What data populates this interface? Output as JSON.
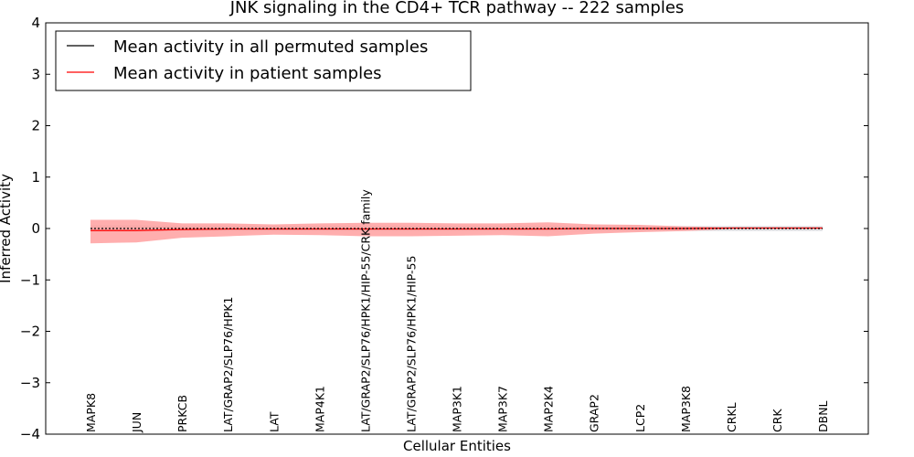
{
  "chart_data": {
    "type": "line",
    "title": "JNK signaling in the CD4+ TCR pathway -- 222 samples",
    "xlabel": "Cellular Entities",
    "ylabel": "Inferred Activity",
    "ylim": [
      -4,
      4
    ],
    "yticks": [
      4,
      3,
      2,
      1,
      0,
      -1,
      -2,
      -3,
      -4
    ],
    "ytick_labels": [
      "4",
      "3",
      "2",
      "1",
      "0",
      "−1",
      "−2",
      "−3",
      "−4"
    ],
    "categories": [
      "MAPK8",
      "JUN",
      "PRKCB",
      "LAT/GRAP2/SLP76/HPK1",
      "LAT",
      "MAP4K1",
      "LAT/GRAP2/SLP76/HPK1/HIP-55/CRK family",
      "LAT/GRAP2/SLP76/HPK1/HIP-55",
      "MAP3K1",
      "MAP3K7",
      "MAP2K4",
      "GRAP2",
      "LCP2",
      "MAP3K8",
      "CRKL",
      "CRK",
      "DBNL"
    ],
    "legend_position": "top-left",
    "colors": {
      "permuted": "#000000",
      "patient": "#ff0000",
      "patient_band": "#ff9a9a",
      "permuted_band": "#c9c9cf"
    },
    "series": [
      {
        "name": "Mean activity in all permuted samples",
        "values": [
          0.0,
          0.0,
          0.0,
          0.0,
          0.0,
          0.0,
          0.0,
          0.0,
          0.0,
          0.0,
          0.0,
          0.0,
          0.0,
          0.0,
          0.0,
          0.0,
          0.0
        ],
        "band_low": [
          -0.06,
          -0.06,
          -0.05,
          -0.05,
          -0.05,
          -0.05,
          -0.05,
          -0.05,
          -0.05,
          -0.05,
          -0.05,
          -0.05,
          -0.05,
          -0.05,
          -0.05,
          -0.05,
          -0.05
        ],
        "band_high": [
          0.06,
          0.06,
          0.05,
          0.05,
          0.05,
          0.05,
          0.05,
          0.05,
          0.05,
          0.05,
          0.05,
          0.05,
          0.05,
          0.05,
          0.05,
          0.05,
          0.05
        ]
      },
      {
        "name": "Mean activity in patient samples",
        "values": [
          -0.04,
          -0.04,
          -0.02,
          -0.01,
          -0.01,
          -0.01,
          -0.01,
          -0.01,
          -0.01,
          -0.01,
          -0.01,
          0.0,
          0.0,
          0.0,
          0.01,
          0.01,
          0.01
        ],
        "band_low": [
          -0.29,
          -0.27,
          -0.18,
          -0.15,
          -0.12,
          -0.13,
          -0.15,
          -0.15,
          -0.14,
          -0.13,
          -0.15,
          -0.1,
          -0.07,
          -0.05,
          -0.01,
          -0.01,
          -0.01
        ],
        "band_high": [
          0.17,
          0.17,
          0.1,
          0.1,
          0.08,
          0.1,
          0.11,
          0.11,
          0.1,
          0.1,
          0.12,
          0.08,
          0.07,
          0.04,
          0.02,
          0.02,
          0.02
        ]
      }
    ]
  }
}
